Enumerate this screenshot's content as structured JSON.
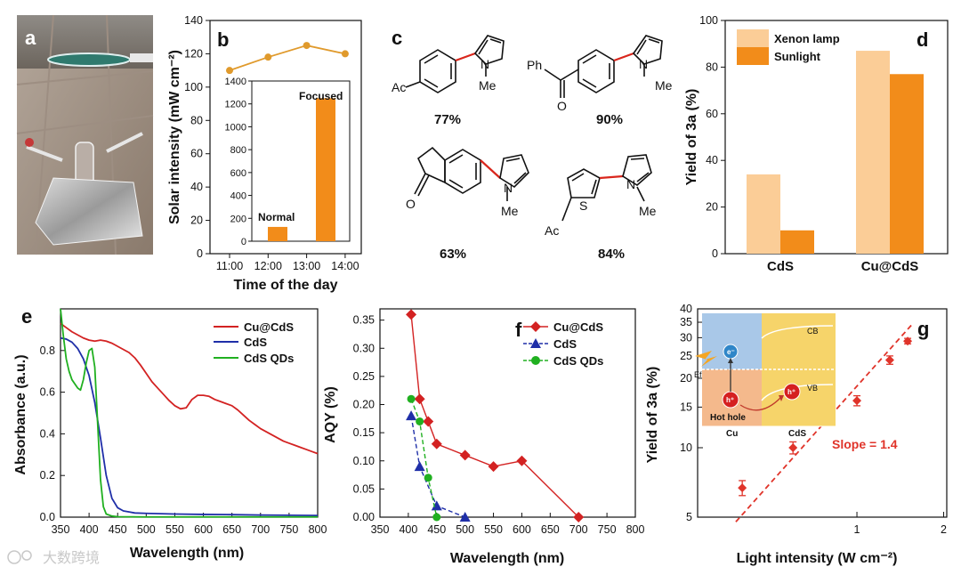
{
  "colors": {
    "orange_line": "#E09A2C",
    "bar_orange": "#F28C1A",
    "bar_light": "#FBCD97",
    "red": "#D32222",
    "blue": "#1F2FA8",
    "green": "#20B020",
    "slope_red": "#E0342A"
  },
  "panels": {
    "a": "a",
    "b": "b",
    "c": "c",
    "d": "d",
    "e": "e",
    "f": "f",
    "g": "g"
  },
  "compounds": [
    {
      "substituent": "Ac",
      "yield": "77%"
    },
    {
      "substituent": "Ph",
      "carbonyl": "O",
      "yield": "90%"
    },
    {
      "carbonyl": "O",
      "yield": "63%"
    },
    {
      "substituent": "Ac",
      "heteroatom": "S",
      "yield": "84%"
    }
  ],
  "pyrrole": {
    "n": "N",
    "me": "Me"
  },
  "watermark": "大数跨境",
  "chart_data": [
    {
      "id": "b-main",
      "type": "line",
      "categories": [
        "11:00",
        "12:00",
        "13:00",
        "14:00"
      ],
      "values": [
        110,
        118,
        125,
        120
      ],
      "xlabel": "Time of the day",
      "ylabel": "Solar intensity (mW cm⁻²)",
      "ylim": [
        0,
        140
      ],
      "yticks": [
        0,
        20,
        40,
        60,
        80,
        100,
        120,
        140
      ]
    },
    {
      "id": "b-inset",
      "type": "bar",
      "categories": [
        "Normal",
        "Focused"
      ],
      "values": [
        125,
        1250
      ],
      "ylim": [
        0,
        1400
      ],
      "yticks": [
        0,
        200,
        400,
        600,
        800,
        1000,
        1200,
        1400
      ]
    },
    {
      "id": "d",
      "type": "bar",
      "categories": [
        "CdS",
        "Cu@CdS"
      ],
      "series": [
        {
          "name": "Xenon lamp",
          "values": [
            34,
            87
          ]
        },
        {
          "name": "Sunlight",
          "values": [
            10,
            77
          ]
        }
      ],
      "ylabel": "Yield of 3a (%)",
      "ylim": [
        0,
        100
      ],
      "yticks": [
        0,
        20,
        40,
        60,
        80,
        100
      ]
    },
    {
      "id": "e",
      "type": "line",
      "xlabel": "Wavelength (nm)",
      "ylabel": "Absorbance (a.u.)",
      "xlim": [
        350,
        800
      ],
      "ylim": [
        0,
        1.0
      ],
      "xticks": [
        350,
        400,
        450,
        500,
        550,
        600,
        650,
        700,
        750,
        800
      ],
      "yticks": [
        0.0,
        0.2,
        0.4,
        0.6,
        0.8
      ],
      "series": [
        {
          "name": "Cu@CdS",
          "x": [
            350,
            360,
            370,
            380,
            390,
            400,
            410,
            420,
            430,
            440,
            450,
            460,
            470,
            480,
            490,
            500,
            510,
            520,
            530,
            540,
            550,
            560,
            570,
            580,
            590,
            600,
            610,
            620,
            630,
            640,
            650,
            660,
            670,
            680,
            690,
            700,
            710,
            720,
            730,
            740,
            750,
            760,
            770,
            780,
            790,
            800
          ],
          "y": [
            0.93,
            0.91,
            0.89,
            0.875,
            0.86,
            0.85,
            0.845,
            0.85,
            0.845,
            0.835,
            0.82,
            0.805,
            0.79,
            0.765,
            0.73,
            0.69,
            0.65,
            0.62,
            0.59,
            0.56,
            0.535,
            0.52,
            0.525,
            0.565,
            0.585,
            0.585,
            0.58,
            0.565,
            0.555,
            0.545,
            0.535,
            0.515,
            0.49,
            0.465,
            0.445,
            0.425,
            0.41,
            0.395,
            0.38,
            0.365,
            0.355,
            0.345,
            0.335,
            0.325,
            0.315,
            0.305
          ]
        },
        {
          "name": "CdS",
          "x": [
            350,
            360,
            370,
            380,
            390,
            400,
            410,
            420,
            430,
            440,
            450,
            460,
            470,
            480,
            500,
            550,
            600,
            650,
            700,
            750,
            800
          ],
          "y": [
            0.86,
            0.855,
            0.84,
            0.81,
            0.76,
            0.68,
            0.55,
            0.38,
            0.2,
            0.09,
            0.045,
            0.03,
            0.025,
            0.02,
            0.018,
            0.015,
            0.013,
            0.012,
            0.01,
            0.009,
            0.008
          ]
        },
        {
          "name": "CdS QDs",
          "x": [
            350,
            355,
            360,
            365,
            370,
            375,
            380,
            385,
            390,
            395,
            400,
            405,
            410,
            415,
            420,
            425,
            430,
            440,
            450,
            500,
            550,
            600,
            700,
            800
          ],
          "y": [
            1.0,
            0.87,
            0.76,
            0.7,
            0.66,
            0.64,
            0.62,
            0.61,
            0.66,
            0.74,
            0.8,
            0.81,
            0.72,
            0.45,
            0.18,
            0.05,
            0.015,
            0.005,
            0.002,
            0.001,
            0.001,
            0.001,
            0.001,
            0.001
          ]
        }
      ]
    },
    {
      "id": "f",
      "type": "line",
      "xlabel": "Wavelength (nm)",
      "ylabel": "AQY (%)",
      "xlim": [
        350,
        800
      ],
      "ylim": [
        0,
        0.37
      ],
      "xticks": [
        350,
        400,
        450,
        500,
        550,
        600,
        650,
        700,
        750,
        800
      ],
      "yticks": [
        0.0,
        0.05,
        0.1,
        0.15,
        0.2,
        0.25,
        0.3,
        0.35
      ],
      "series": [
        {
          "name": "Cu@CdS",
          "marker": "diamond",
          "x": [
            405,
            420,
            435,
            450,
            500,
            550,
            600,
            700
          ],
          "y": [
            0.36,
            0.21,
            0.17,
            0.13,
            0.11,
            0.09,
            0.1,
            0.0
          ]
        },
        {
          "name": "CdS",
          "marker": "triangle",
          "x": [
            405,
            420,
            450,
            500
          ],
          "y": [
            0.18,
            0.09,
            0.02,
            0.0
          ]
        },
        {
          "name": "CdS QDs",
          "marker": "circle",
          "x": [
            405,
            420,
            435,
            450
          ],
          "y": [
            0.21,
            0.17,
            0.07,
            0.0
          ]
        }
      ]
    },
    {
      "id": "g",
      "type": "scatter",
      "xlabel": "Light intensity (W cm⁻²)",
      "ylabel": "Yield of 3a (%)",
      "xscale": "log",
      "yscale": "log",
      "xlim": [
        0.28,
        2.05
      ],
      "ylim": [
        5,
        40
      ],
      "xticks": [
        1,
        2
      ],
      "yticks": [
        5,
        10,
        15,
        20,
        25,
        30,
        35,
        40
      ],
      "x": [
        0.4,
        0.6,
        1.0,
        1.3,
        1.5
      ],
      "y": [
        6.7,
        10.0,
        16.0,
        24.0,
        29.0
      ],
      "yerr": [
        0.5,
        0.6,
        0.8,
        1.0,
        0.8
      ],
      "annotation": "Slope = 1.4"
    }
  ],
  "legends": {
    "b_normal": "Normal",
    "b_focused": "Focused",
    "d_xenon": "Xenon lamp",
    "d_sun": "Sunlight",
    "e_cucds": "Cu@CdS",
    "e_cds": "CdS",
    "e_qds": "CdS QDs",
    "f_cucds": "Cu@CdS",
    "f_cds": "CdS",
    "f_qds": "CdS QDs"
  },
  "inset_g": {
    "cb": "CB",
    "vb": "VB",
    "ef": "Ef",
    "e": "e⁻",
    "h": "h⁺",
    "h2": "h⁺",
    "hot_hole": "Hot hole",
    "cu": "Cu",
    "cds": "CdS"
  }
}
